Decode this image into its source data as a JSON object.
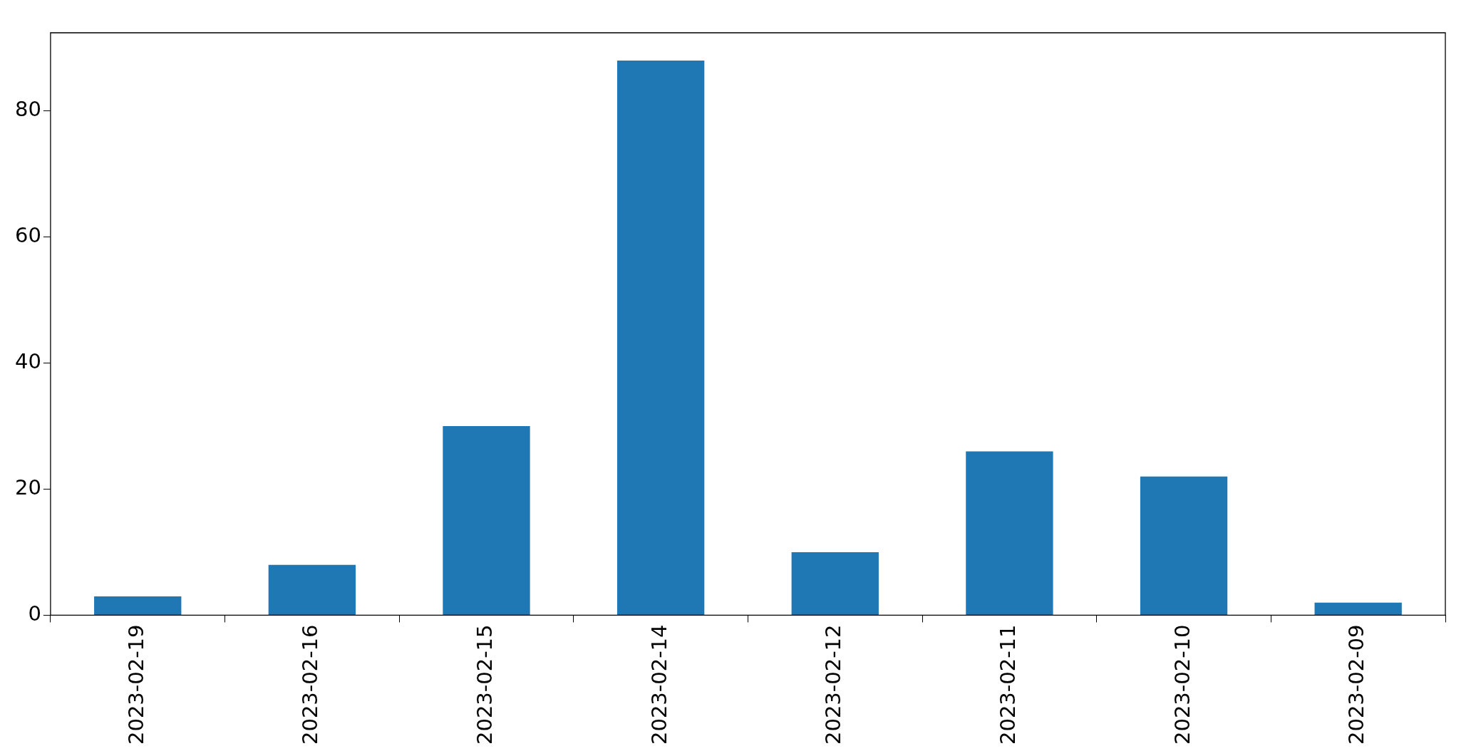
{
  "chart_data": {
    "type": "bar",
    "categories": [
      "2023-02-19",
      "2023-02-16",
      "2023-02-15",
      "2023-02-14",
      "2023-02-12",
      "2023-02-11",
      "2023-02-10",
      "2023-02-09"
    ],
    "values": [
      3,
      8,
      30,
      88,
      10,
      26,
      22,
      2
    ],
    "color": "#1f77b4",
    "ylim": [
      0,
      92.4
    ],
    "yticks": [
      0,
      20,
      40,
      60,
      80
    ]
  }
}
